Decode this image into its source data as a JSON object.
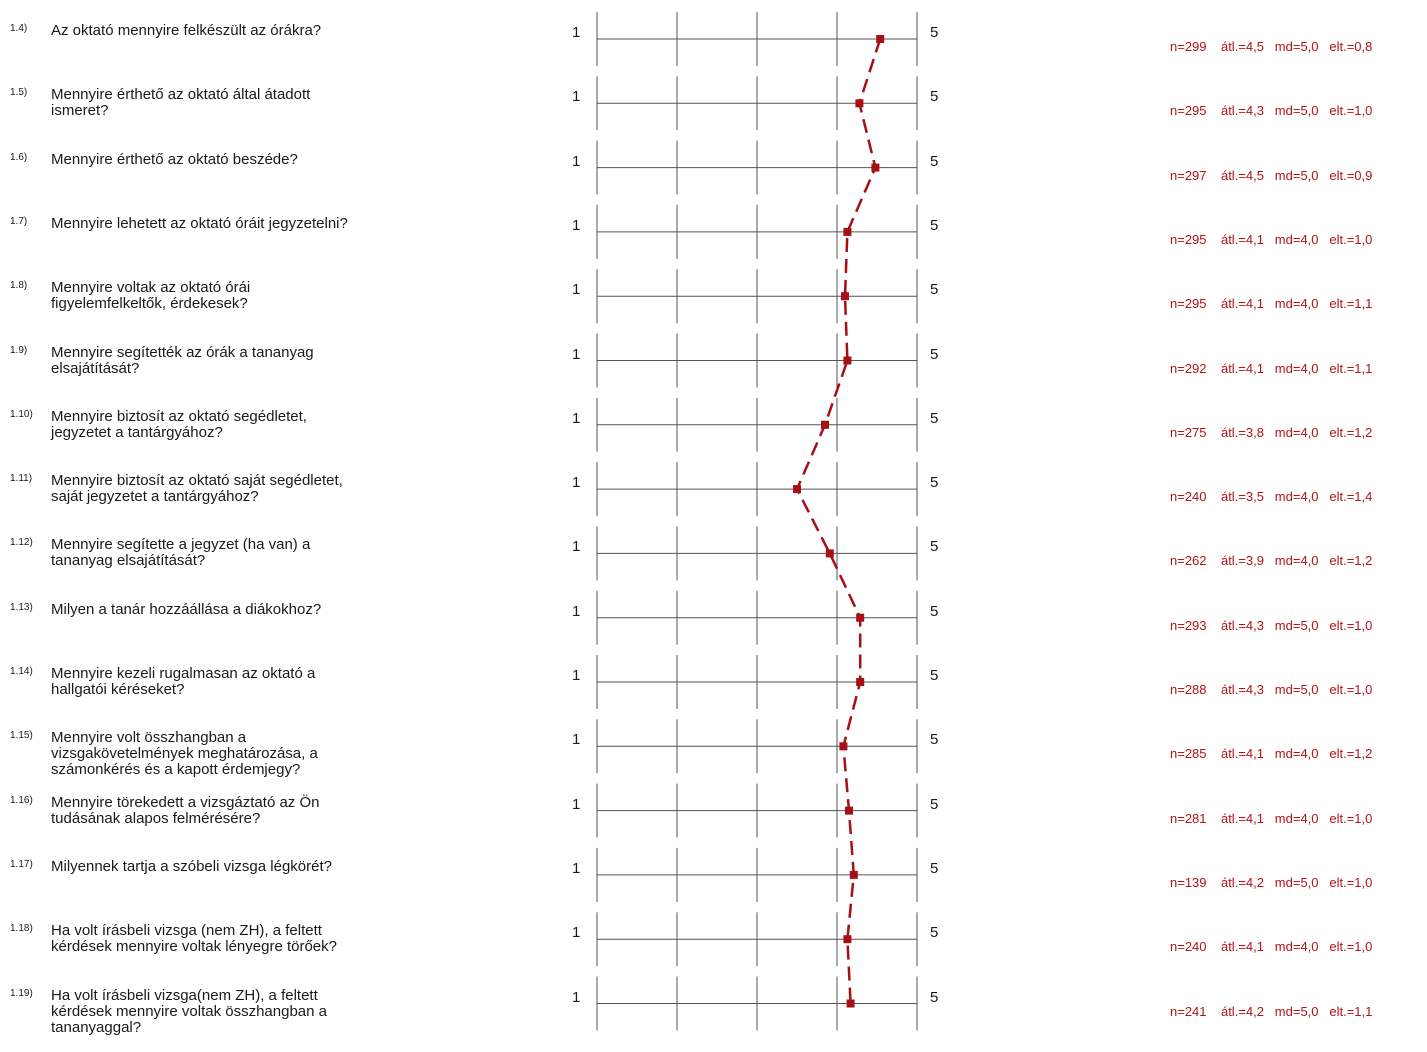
{
  "colors": {
    "series": "#a50f15",
    "grid": "#555555",
    "stats": "#b31217"
  },
  "scale": {
    "min_label": "1",
    "max_label": "5"
  },
  "questions": [
    {
      "num": "1.4)",
      "text": [
        "Az oktató mennyire felkészült az órákra?"
      ],
      "stats": "n=299    átl.=4,5   md=5,0   elt.=0,8"
    },
    {
      "num": "1.5)",
      "text": [
        "Mennyire érthető az oktató által átadott",
        "ismeret?"
      ],
      "stats": "n=295    átl.=4,3   md=5,0   elt.=1,0"
    },
    {
      "num": "1.6)",
      "text": [
        "Mennyire érthető az oktató beszéde?"
      ],
      "stats": "n=297    átl.=4,5   md=5,0   elt.=0,9"
    },
    {
      "num": "1.7)",
      "text": [
        "Mennyire lehetett az oktató óráit jegyzetelni?"
      ],
      "stats": "n=295    átl.=4,1   md=4,0   elt.=1,0"
    },
    {
      "num": "1.8)",
      "text": [
        "Mennyire voltak az oktató órái",
        "figyelemfelkeltők, érdekesek?"
      ],
      "stats": "n=295    átl.=4,1   md=4,0   elt.=1,1"
    },
    {
      "num": "1.9)",
      "text": [
        "Mennyire segítették az órák a tananyag",
        "elsajátítását?"
      ],
      "stats": "n=292    átl.=4,1   md=4,0   elt.=1,1"
    },
    {
      "num": "1.10)",
      "text": [
        "Mennyire biztosít az oktató segédletet,",
        "jegyzetet a tantárgyához?"
      ],
      "stats": "n=275    átl.=3,8   md=4,0   elt.=1,2"
    },
    {
      "num": "1.11)",
      "text": [
        "Mennyire biztosít az oktató saját segédletet,",
        "saját jegyzetet a tantárgyához?"
      ],
      "stats": "n=240    átl.=3,5   md=4,0   elt.=1,4"
    },
    {
      "num": "1.12)",
      "text": [
        "Mennyire segítette a jegyzet (ha van) a",
        "tananyag elsajátítását?"
      ],
      "stats": "n=262    átl.=3,9   md=4,0   elt.=1,2"
    },
    {
      "num": "1.13)",
      "text": [
        "Milyen a tanár hozzáállása a diákokhoz?"
      ],
      "stats": "n=293    átl.=4,3   md=5,0   elt.=1,0"
    },
    {
      "num": "1.14)",
      "text": [
        "Mennyire kezeli rugalmasan az oktató a",
        "hallgatói kéréseket?"
      ],
      "stats": "n=288    átl.=4,3   md=5,0   elt.=1,0"
    },
    {
      "num": "1.15)",
      "text": [
        "Mennyire volt összhangban a",
        "vizsgakövetelmények meghatározása, a",
        "számonkérés és a kapott érdemjegy?"
      ],
      "stats": "n=285    átl.=4,1   md=4,0   elt.=1,2"
    },
    {
      "num": "1.16)",
      "text": [
        "Mennyire törekedett a vizsgáztató az Ön",
        "tudásának alapos felmérésére?"
      ],
      "stats": "n=281    átl.=4,1   md=4,0   elt.=1,0"
    },
    {
      "num": "1.17)",
      "text": [
        "Milyennek tartja a szóbeli vizsga légkörét?"
      ],
      "stats": "n=139    átl.=4,2   md=5,0   elt.=1,0"
    },
    {
      "num": "1.18)",
      "text": [
        "Ha volt írásbeli vizsga (nem ZH), a feltett",
        "kérdések mennyire voltak lényegre törőek?"
      ],
      "stats": "n=240    átl.=4,1   md=4,0   elt.=1,0"
    },
    {
      "num": "1.19)",
      "text": [
        "Ha volt írásbeli vizsga(nem ZH), a feltett",
        "kérdések mennyire voltak összhangban a",
        "tananyaggal?"
      ],
      "stats": "n=241    átl.=4,2   md=5,0   elt.=1,1"
    }
  ],
  "chart_data": {
    "type": "line",
    "orientation": "vertical-profile",
    "xlim": [
      1,
      5
    ],
    "categories": [
      "1.4)",
      "1.5)",
      "1.6)",
      "1.7)",
      "1.8)",
      "1.9)",
      "1.10)",
      "1.11)",
      "1.12)",
      "1.13)",
      "1.14)",
      "1.15)",
      "1.16)",
      "1.17)",
      "1.18)",
      "1.19)"
    ],
    "values": [
      4.54,
      4.28,
      4.48,
      4.13,
      4.1,
      4.13,
      3.85,
      3.5,
      3.91,
      4.29,
      4.29,
      4.08,
      4.15,
      4.21,
      4.13,
      4.17
    ],
    "line_style": "dashed",
    "marker": "square"
  }
}
